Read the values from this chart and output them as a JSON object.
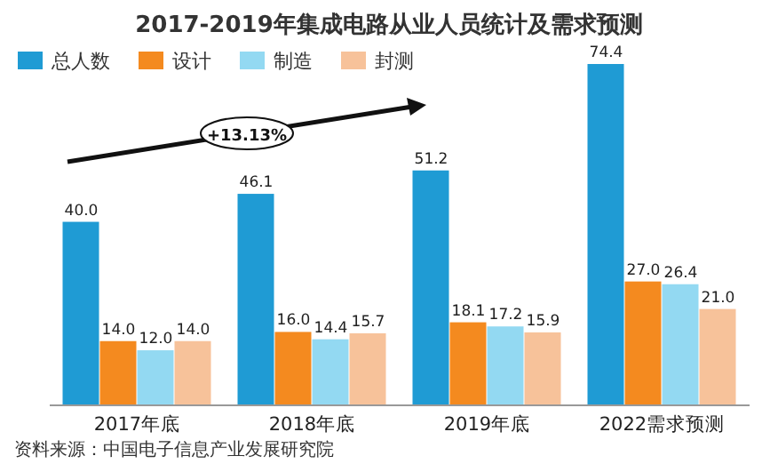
{
  "chart_data": {
    "type": "bar",
    "title": "2017-2019年集成电路从业人员统计及需求预测",
    "categories": [
      "2017年底",
      "2018年底",
      "2019年底",
      "2022需求预测"
    ],
    "series": [
      {
        "name": "总人数",
        "color": "#1f9bd4",
        "values": [
          40.0,
          46.1,
          51.2,
          74.4
        ],
        "value_labels": [
          "40.0",
          "46.1",
          "51.2",
          "74.4"
        ]
      },
      {
        "name": "设计",
        "color": "#f48a1f",
        "values": [
          14.0,
          16.0,
          18.1,
          27.0
        ],
        "value_labels": [
          "14.0",
          "16.0",
          "18.1",
          "27.0"
        ]
      },
      {
        "name": "制造",
        "color": "#93d9f2",
        "values": [
          12.0,
          14.4,
          17.2,
          26.4
        ],
        "value_labels": [
          "12.0",
          "14.4",
          "17.2",
          "26.4"
        ]
      },
      {
        "name": "封测",
        "color": "#f7c29a",
        "values": [
          14.0,
          15.7,
          15.9,
          21.0
        ],
        "value_labels": [
          "14.0",
          "15.7",
          "15.9",
          "21.0"
        ]
      }
    ],
    "legend": "top left",
    "annotations": [
      "+13.13%",
      "资料来源：中国电子信息产业发展研究院"
    ]
  }
}
